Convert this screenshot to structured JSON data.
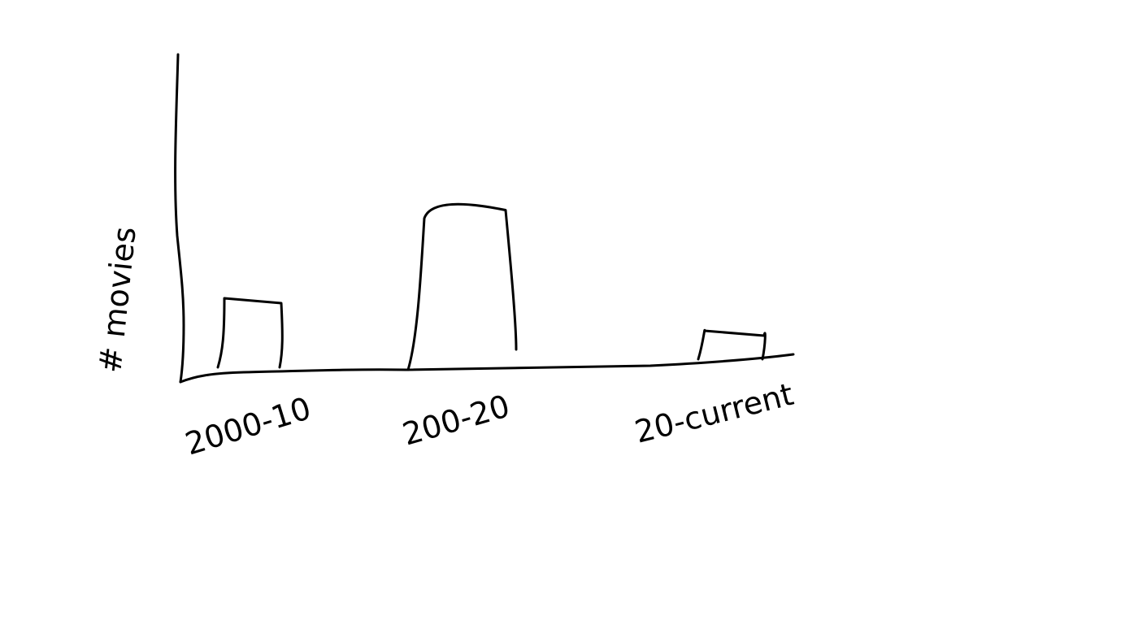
{
  "chart_data": {
    "type": "bar",
    "title": "",
    "xlabel": "",
    "ylabel": "# movies",
    "categories": [
      "2000-10",
      "200-20",
      "20-current"
    ],
    "values": [
      3.4,
      8.1,
      1.4
    ],
    "ylim": [
      0,
      16
    ],
    "grid": false,
    "legend": "none",
    "colors": {
      "ink": "#000000",
      "background": "#ffffff"
    }
  }
}
